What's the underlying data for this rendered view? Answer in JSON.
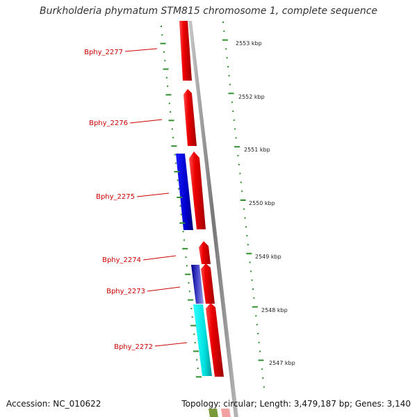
{
  "title": "Burkholderia phymatum STM815 chromosome 1, complete sequence",
  "accession": "Accession: NC_010622",
  "summary": "Topology: circular; Length: 3,479,187 bp; Genes: 3,140",
  "colors": {
    "forward_cds": "#ee0000",
    "reverse_cds": "#1111dd",
    "reverse_cds_dark": "#000088",
    "reverse_cds_light": "#00e5e5",
    "backbone": "#888888",
    "gc_ticks": "#2f8f2f",
    "label": "#cc0000"
  },
  "scale_labels": [
    "2553 kbp",
    "2552 kbp",
    "2551 kbp",
    "2550 kbp",
    "2549 kbp",
    "2548 kbp",
    "2547 kbp"
  ],
  "gene_labels": [
    "Bphy_2277",
    "Bphy_2276",
    "Bphy_2275",
    "Bphy_2274",
    "Bphy_2273",
    "Bphy_2272"
  ]
}
